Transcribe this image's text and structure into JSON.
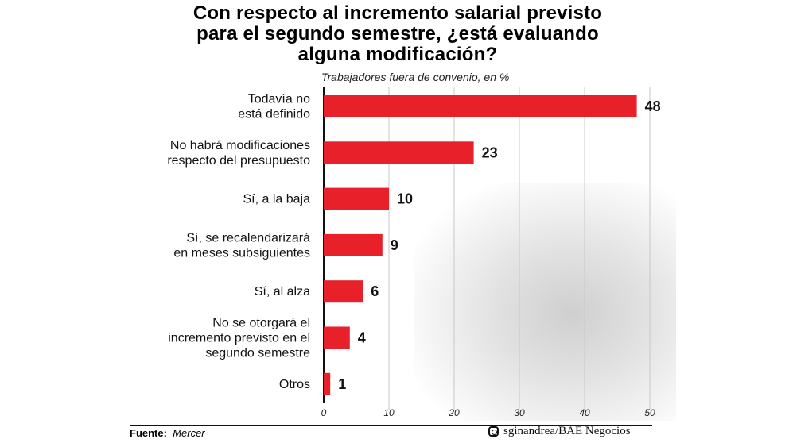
{
  "chart_data": {
    "type": "bar",
    "orientation": "horizontal",
    "title": "Con respecto al incremento salarial previsto para el segundo semestre, ¿está evaluando alguna modificación?",
    "title_lines": [
      "Con respecto al incremento salarial previsto",
      "para el segundo semestre, ¿está evaluando",
      "alguna modificación?"
    ],
    "subtitle": "Trabajadores fuera de convenio, en %",
    "categories": [
      [
        "Todavía no",
        "está definido"
      ],
      [
        "No habrá modificaciones",
        "respecto del presupuesto"
      ],
      [
        "Sí, a la baja"
      ],
      [
        "Sí, se recalendarizará",
        "en meses subsiguientes"
      ],
      [
        "Sí, al alza"
      ],
      [
        "No se otorgará el",
        "incremento previsto en el",
        "segundo semestre"
      ],
      [
        "Otros"
      ]
    ],
    "values": [
      48,
      23,
      10,
      9,
      6,
      4,
      1
    ],
    "xlim": [
      0,
      50
    ],
    "ticks": [
      0,
      10,
      20,
      30,
      40,
      50
    ],
    "grid": true,
    "bar_color": "#e8202a"
  },
  "footer": {
    "source_label": "Fuente:",
    "source": "Mercer",
    "credit": "sginandrea/BAE Negocios",
    "credit_icon": "instagram-icon"
  }
}
